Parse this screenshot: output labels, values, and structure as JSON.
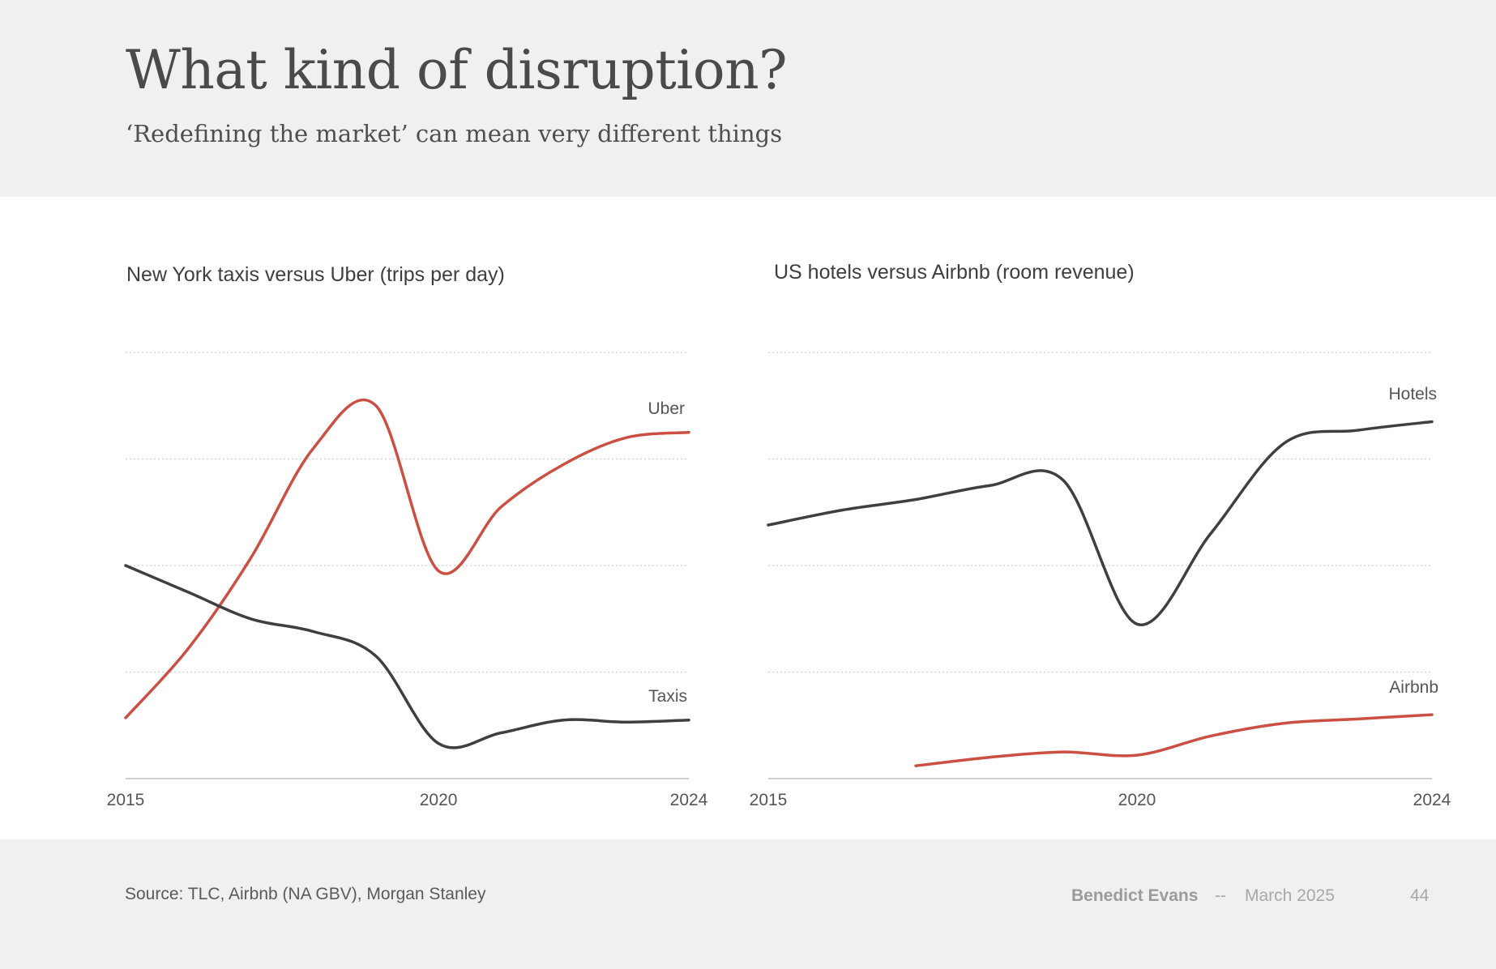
{
  "header": {
    "title": "What kind of disruption?",
    "subtitle": "‘Redefining the market’ can mean very different things"
  },
  "footer": {
    "source": "Source: TLC, Airbnb (NA GBV), Morgan Stanley",
    "author": "Benedict Evans",
    "separator": "--",
    "date": "March 2025",
    "page_number": "44"
  },
  "colors": {
    "red": "#cc4f43",
    "dark": "#3f3f3f"
  },
  "chart_data": [
    {
      "type": "line",
      "title": "New York taxis versus Uber (trips per day)",
      "xlabel": "",
      "ylabel": "",
      "xlim": [
        2015,
        2024
      ],
      "ylim": [
        0,
        4
      ],
      "x_ticks": [
        "2015",
        "2020",
        "2024"
      ],
      "grid": true,
      "series": [
        {
          "name": "Uber",
          "color": "#cc4f43",
          "points": [
            [
              2015,
              0.57
            ],
            [
              2016,
              1.22
            ],
            [
              2017,
              2.07
            ],
            [
              2018,
              3.1
            ],
            [
              2019,
              3.5
            ],
            [
              2020,
              1.95
            ],
            [
              2021,
              2.55
            ],
            [
              2022,
              2.95
            ],
            [
              2023,
              3.2
            ],
            [
              2024,
              3.25
            ]
          ]
        },
        {
          "name": "Taxis",
          "color": "#3f3f3f",
          "points": [
            [
              2015,
              2.0
            ],
            [
              2016,
              1.75
            ],
            [
              2017,
              1.5
            ],
            [
              2018,
              1.38
            ],
            [
              2019,
              1.15
            ],
            [
              2020,
              0.33
            ],
            [
              2021,
              0.43
            ],
            [
              2022,
              0.55
            ],
            [
              2023,
              0.53
            ],
            [
              2024,
              0.55
            ]
          ]
        }
      ]
    },
    {
      "type": "line",
      "title": "US hotels versus Airbnb (room revenue)",
      "xlabel": "",
      "ylabel": "",
      "xlim": [
        2015,
        2024
      ],
      "ylim": [
        0,
        4
      ],
      "x_ticks": [
        "2015",
        "2020",
        "2024"
      ],
      "grid": true,
      "series": [
        {
          "name": "Hotels",
          "color": "#3f3f3f",
          "points": [
            [
              2015,
              2.38
            ],
            [
              2016,
              2.52
            ],
            [
              2017,
              2.62
            ],
            [
              2018,
              2.75
            ],
            [
              2019,
              2.8
            ],
            [
              2020,
              1.45
            ],
            [
              2021,
              2.3
            ],
            [
              2022,
              3.15
            ],
            [
              2023,
              3.27
            ],
            [
              2024,
              3.35
            ]
          ]
        },
        {
          "name": "Airbnb",
          "color": "#cc4f43",
          "points": [
            [
              2017,
              0.12
            ],
            [
              2018,
              0.2
            ],
            [
              2019,
              0.25
            ],
            [
              2020,
              0.22
            ],
            [
              2021,
              0.4
            ],
            [
              2022,
              0.52
            ],
            [
              2023,
              0.56
            ],
            [
              2024,
              0.6
            ]
          ]
        }
      ]
    }
  ]
}
